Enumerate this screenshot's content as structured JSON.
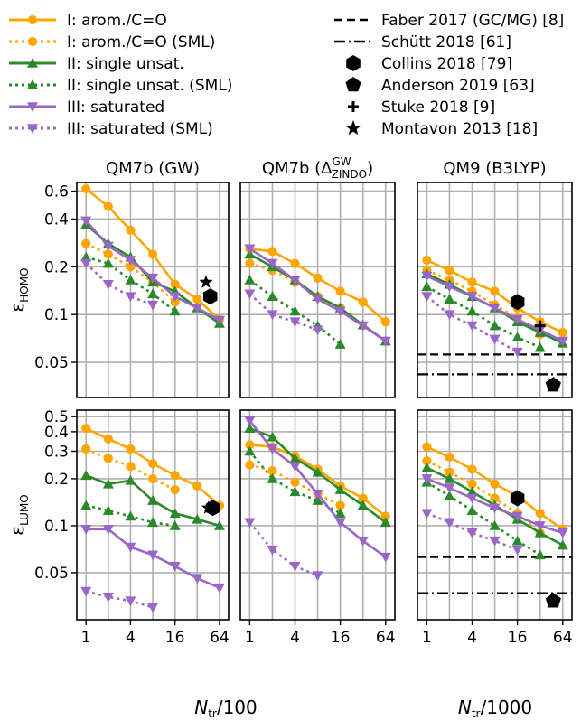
{
  "colors": {
    "orange": "#ffa500",
    "green": "#2a8a2a",
    "purple": "#9b66c9",
    "black": "#000000"
  },
  "legend": {
    "left": [
      {
        "label": "I: arom./C=O",
        "color": "orange",
        "marker": "circle",
        "dashed": false
      },
      {
        "label": "I: arom./C=O (SML)",
        "color": "orange",
        "marker": "circle",
        "dashed": true
      },
      {
        "label": "II: single unsat.",
        "color": "green",
        "marker": "triangle-up",
        "dashed": false
      },
      {
        "label": "II: single unsat. (SML)",
        "color": "green",
        "marker": "triangle-up",
        "dashed": true
      },
      {
        "label": "III: saturated",
        "color": "purple",
        "marker": "triangle-down",
        "dashed": false
      },
      {
        "label": "III: saturated (SML)",
        "color": "purple",
        "marker": "triangle-down",
        "dashed": true
      }
    ],
    "right": [
      {
        "label": "Faber 2017 (GC/MG) [8]",
        "icon": "dashed-line"
      },
      {
        "label": "Schütt 2018 [61]",
        "icon": "dashdot-line"
      },
      {
        "label": "Collins 2018 [79]",
        "icon": "hexagon"
      },
      {
        "label": "Anderson 2019 [63]",
        "icon": "pentagon"
      },
      {
        "label": "Stuke 2018 [9]",
        "icon": "plus"
      },
      {
        "label": "Montavon 2013 [18]",
        "icon": "star"
      }
    ]
  },
  "titles": {
    "col1": "QM7b (GW)",
    "col2_main": "QM7b (Δ",
    "col2_sup": "GW",
    "col2_sub": "ZINDO",
    "col2_end": ")",
    "col3": "QM9 (B3LYP)"
  },
  "axes": {
    "ylabel_top_main": "ε",
    "ylabel_top_sub": "HOMO",
    "ylabel_bottom_main": "ε",
    "ylabel_bottom_sub": "LUMO",
    "xlabel_left_main": "N",
    "xlabel_left_sub": "tr",
    "xlabel_left_end": "/100",
    "xlabel_right_main": "N",
    "xlabel_right_sub": "tr",
    "xlabel_right_end": "/1000",
    "x_ticks": [
      "1",
      "4",
      "16",
      "64"
    ],
    "y_ticks_top": [
      "0.05",
      "0.1",
      "0.2",
      "0.4",
      "0.6"
    ],
    "y_ticks_bottom": [
      "0.05",
      "0.1",
      "0.2",
      "0.3",
      "0.4",
      "0.5"
    ]
  },
  "chart_data": [
    {
      "type": "line",
      "title": "QM7b (GW)",
      "row": "HOMO",
      "x_scale": "log2",
      "y_scale": "log",
      "xlim": [
        0.75,
        85
      ],
      "ylim": [
        0.03,
        0.68
      ],
      "grid": true,
      "series": [
        {
          "name": "I: arom./C=O",
          "x": [
            1,
            2,
            4,
            8,
            16,
            32,
            64
          ],
          "y": [
            0.62,
            0.48,
            0.34,
            0.24,
            0.155,
            0.125,
            0.093
          ]
        },
        {
          "name": "I: arom./C=O (SML)",
          "x": [
            1,
            2,
            4,
            8,
            16
          ],
          "y": [
            0.28,
            0.24,
            0.2,
            0.16,
            0.12
          ]
        },
        {
          "name": "II: single unsat.",
          "x": [
            1,
            2,
            4,
            8,
            16,
            32,
            64
          ],
          "y": [
            0.37,
            0.28,
            0.23,
            0.16,
            0.14,
            0.11,
            0.088
          ]
        },
        {
          "name": "II: single unsat. (SML)",
          "x": [
            1,
            2,
            4,
            8,
            16
          ],
          "y": [
            0.23,
            0.21,
            0.165,
            0.135,
            0.105
          ]
        },
        {
          "name": "III: saturated",
          "x": [
            1,
            2,
            4,
            8,
            16,
            32,
            64
          ],
          "y": [
            0.39,
            0.27,
            0.22,
            0.17,
            0.13,
            0.11,
            0.092
          ]
        },
        {
          "name": "III: saturated (SML)",
          "x": [
            1,
            2,
            4,
            8
          ],
          "y": [
            0.21,
            0.155,
            0.13,
            0.115
          ]
        }
      ],
      "references": [
        {
          "name": "Collins 2018 [79]",
          "marker": "hexagon",
          "x": 48,
          "y": 0.13
        },
        {
          "name": "Montavon 2013 [18]",
          "marker": "star",
          "x": 42,
          "y": 0.16
        }
      ]
    },
    {
      "type": "line",
      "title": "QM7b (ΔGW ZINDO)",
      "row": "HOMO",
      "x_scale": "log2",
      "y_scale": "log",
      "xlim": [
        0.75,
        85
      ],
      "ylim": [
        0.03,
        0.68
      ],
      "grid": true,
      "series": [
        {
          "name": "I: arom./C=O",
          "x": [
            1,
            2,
            4,
            8,
            16,
            32,
            64
          ],
          "y": [
            0.26,
            0.25,
            0.21,
            0.17,
            0.14,
            0.12,
            0.09
          ]
        },
        {
          "name": "I: arom./C=O (SML)",
          "x": [
            1,
            2,
            4,
            8,
            16
          ],
          "y": [
            0.21,
            0.19,
            0.16,
            0.13,
            0.11
          ]
        },
        {
          "name": "II: single unsat.",
          "x": [
            1,
            2,
            4,
            8,
            16,
            32,
            64
          ],
          "y": [
            0.24,
            0.2,
            0.165,
            0.13,
            0.11,
            0.086,
            0.068
          ]
        },
        {
          "name": "II: single unsat. (SML)",
          "x": [
            1,
            2,
            4,
            8,
            16
          ],
          "y": [
            0.165,
            0.13,
            0.105,
            0.085,
            0.065
          ]
        },
        {
          "name": "III: saturated",
          "x": [
            1,
            2,
            4,
            8,
            16,
            32,
            64
          ],
          "y": [
            0.26,
            0.21,
            0.165,
            0.125,
            0.105,
            0.085,
            0.068
          ]
        },
        {
          "name": "III: saturated (SML)",
          "x": [
            1,
            2,
            4,
            8
          ],
          "y": [
            0.135,
            0.1,
            0.09,
            0.08
          ]
        }
      ]
    },
    {
      "type": "line",
      "title": "QM9 (B3LYP)",
      "row": "HOMO",
      "x_scale": "log2",
      "y_scale": "log",
      "xlim": [
        0.75,
        85
      ],
      "ylim": [
        0.03,
        0.68
      ],
      "grid": true,
      "series": [
        {
          "name": "I: arom./C=O",
          "x": [
            1,
            2,
            4,
            8,
            16,
            32,
            64
          ],
          "y": [
            0.22,
            0.19,
            0.16,
            0.14,
            0.11,
            0.09,
            0.077
          ]
        },
        {
          "name": "I: arom./C=O (SML)",
          "x": [
            1,
            2,
            4,
            8,
            16,
            32
          ],
          "y": [
            0.19,
            0.165,
            0.14,
            0.115,
            0.095,
            0.075
          ]
        },
        {
          "name": "II: single unsat.",
          "x": [
            1,
            2,
            4,
            8,
            16,
            32,
            64
          ],
          "y": [
            0.18,
            0.155,
            0.13,
            0.11,
            0.09,
            0.077,
            0.066
          ]
        },
        {
          "name": "II: single unsat. (SML)",
          "x": [
            1,
            2,
            4,
            8,
            16,
            32
          ],
          "y": [
            0.15,
            0.125,
            0.105,
            0.085,
            0.072,
            0.062
          ]
        },
        {
          "name": "III: saturated",
          "x": [
            1,
            2,
            4,
            8,
            16,
            32,
            64
          ],
          "y": [
            0.175,
            0.15,
            0.13,
            0.11,
            0.093,
            0.08,
            0.068
          ]
        },
        {
          "name": "III: saturated (SML)",
          "x": [
            1,
            2,
            4,
            8,
            16
          ],
          "y": [
            0.13,
            0.1,
            0.085,
            0.07,
            0.058
          ]
        }
      ],
      "references": [
        {
          "name": "Faber 2017 (GC/MG) [8]",
          "style": "dashed",
          "y": 0.056
        },
        {
          "name": "Schütt 2018 [61]",
          "style": "dashdot",
          "y": 0.042
        },
        {
          "name": "Collins 2018 [79]",
          "marker": "hexagon",
          "x": 16,
          "y": 0.12
        },
        {
          "name": "Stuke 2018 [9]",
          "marker": "plus",
          "x": 32,
          "y": 0.085
        },
        {
          "name": "Anderson 2019 [63]",
          "marker": "pentagon",
          "x": 48,
          "y": 0.036
        }
      ]
    },
    {
      "type": "line",
      "title": "",
      "row": "LUMO",
      "x_scale": "log2",
      "y_scale": "log",
      "xlim": [
        0.75,
        85
      ],
      "ylim": [
        0.025,
        0.55
      ],
      "grid": true,
      "series": [
        {
          "name": "I: arom./C=O",
          "x": [
            1,
            2,
            4,
            8,
            16,
            32,
            64
          ],
          "y": [
            0.42,
            0.36,
            0.31,
            0.25,
            0.21,
            0.18,
            0.135
          ]
        },
        {
          "name": "I: arom./C=O (SML)",
          "x": [
            1,
            2,
            4,
            8,
            16
          ],
          "y": [
            0.31,
            0.27,
            0.24,
            0.2,
            0.17
          ]
        },
        {
          "name": "II: single unsat.",
          "x": [
            1,
            2,
            4,
            8,
            16,
            32,
            64
          ],
          "y": [
            0.21,
            0.185,
            0.195,
            0.145,
            0.12,
            0.11,
            0.1
          ]
        },
        {
          "name": "II: single unsat. (SML)",
          "x": [
            1,
            2,
            4,
            8,
            16
          ],
          "y": [
            0.135,
            0.125,
            0.115,
            0.105,
            0.1
          ]
        },
        {
          "name": "III: saturated",
          "x": [
            1,
            2,
            4,
            8,
            16,
            32,
            64
          ],
          "y": [
            0.095,
            0.095,
            0.073,
            0.065,
            0.055,
            0.046,
            0.04
          ]
        },
        {
          "name": "III: saturated (SML)",
          "x": [
            1,
            2,
            4,
            8
          ],
          "y": [
            0.038,
            0.035,
            0.033,
            0.03
          ]
        }
      ],
      "references": [
        {
          "name": "Collins 2018 [79]",
          "marker": "hexagon",
          "x": 52,
          "y": 0.13
        },
        {
          "name": "Montavon 2013 [18]",
          "marker": "star",
          "x": 45,
          "y": 0.13
        }
      ]
    },
    {
      "type": "line",
      "title": "",
      "row": "LUMO",
      "x_scale": "log2",
      "y_scale": "log",
      "xlim": [
        0.75,
        85
      ],
      "ylim": [
        0.025,
        0.55
      ],
      "grid": true,
      "series": [
        {
          "name": "I: arom./C=O",
          "x": [
            1,
            2,
            4,
            8,
            16,
            32,
            64
          ],
          "y": [
            0.33,
            0.32,
            0.28,
            0.23,
            0.18,
            0.15,
            0.115
          ]
        },
        {
          "name": "I: arom./C=O (SML)",
          "x": [
            1,
            2,
            4,
            8,
            16
          ],
          "y": [
            0.245,
            0.225,
            0.19,
            0.16,
            0.135
          ]
        },
        {
          "name": "II: single unsat.",
          "x": [
            1,
            2,
            4,
            8,
            16,
            32,
            64
          ],
          "y": [
            0.42,
            0.37,
            0.27,
            0.22,
            0.17,
            0.135,
            0.105
          ]
        },
        {
          "name": "II: single unsat. (SML)",
          "x": [
            1,
            2,
            4,
            8,
            16
          ],
          "y": [
            0.3,
            0.2,
            0.165,
            0.145,
            0.12
          ]
        },
        {
          "name": "III: saturated",
          "x": [
            1,
            2,
            4,
            8,
            16,
            32,
            64
          ],
          "y": [
            0.47,
            0.31,
            0.24,
            0.16,
            0.105,
            0.08,
            0.063
          ]
        },
        {
          "name": "III: saturated (SML)",
          "x": [
            1,
            2,
            4,
            8
          ],
          "y": [
            0.105,
            0.07,
            0.055,
            0.048
          ]
        }
      ]
    },
    {
      "type": "line",
      "title": "",
      "row": "LUMO",
      "x_scale": "log2",
      "y_scale": "log",
      "xlim": [
        0.75,
        85
      ],
      "ylim": [
        0.025,
        0.55
      ],
      "grid": true,
      "series": [
        {
          "name": "I: arom./C=O",
          "x": [
            1,
            2,
            4,
            8,
            16,
            32,
            64
          ],
          "y": [
            0.32,
            0.275,
            0.23,
            0.185,
            0.155,
            0.12,
            0.095
          ]
        },
        {
          "name": "I: arom./C=O (SML)",
          "x": [
            1,
            2,
            4,
            8,
            16,
            32
          ],
          "y": [
            0.26,
            0.22,
            0.185,
            0.15,
            0.12,
            0.09
          ]
        },
        {
          "name": "II: single unsat.",
          "x": [
            1,
            2,
            4,
            8,
            16,
            32,
            64
          ],
          "y": [
            0.235,
            0.2,
            0.165,
            0.135,
            0.11,
            0.09,
            0.075
          ]
        },
        {
          "name": "II: single unsat. (SML)",
          "x": [
            1,
            2,
            4,
            8,
            16,
            32
          ],
          "y": [
            0.19,
            0.155,
            0.125,
            0.1,
            0.08,
            0.065
          ]
        },
        {
          "name": "III: saturated",
          "x": [
            1,
            2,
            4,
            8,
            16,
            32,
            64
          ],
          "y": [
            0.2,
            0.175,
            0.15,
            0.13,
            0.115,
            0.1,
            0.09
          ]
        },
        {
          "name": "III: saturated (SML)",
          "x": [
            1,
            2,
            4,
            8,
            16
          ],
          "y": [
            0.12,
            0.105,
            0.09,
            0.08,
            0.07
          ]
        }
      ],
      "references": [
        {
          "name": "Faber 2017 (GC/MG) [8]",
          "style": "dashed",
          "y": 0.063
        },
        {
          "name": "Schütt 2018 [61]",
          "style": "dashdot",
          "y": 0.037
        },
        {
          "name": "Collins 2018 [79]",
          "marker": "hexagon",
          "x": 16,
          "y": 0.15
        },
        {
          "name": "Anderson 2019 [63]",
          "marker": "pentagon",
          "x": 48,
          "y": 0.033
        }
      ]
    }
  ]
}
